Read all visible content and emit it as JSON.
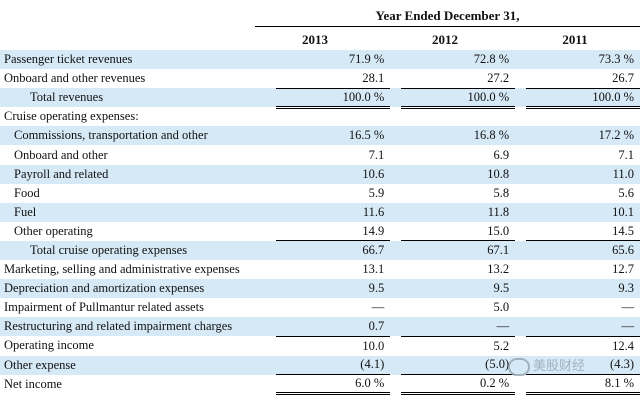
{
  "header": {
    "title": "Year Ended December 31,",
    "years": [
      "2013",
      "2012",
      "2011"
    ]
  },
  "rows": [
    {
      "label": "Passenger ticket revenues",
      "values": [
        "71.9 %",
        "72.8 %",
        "73.3 %"
      ]
    },
    {
      "label": "Onboard and other revenues",
      "values": [
        "28.1",
        "27.2",
        "26.7"
      ]
    },
    {
      "label": "Total revenues",
      "values": [
        "100.0 %",
        "100.0 %",
        "100.0 %"
      ]
    },
    {
      "label": "Cruise operating expenses:",
      "values": [
        "",
        "",
        ""
      ]
    },
    {
      "label": "Commissions, transportation and other",
      "values": [
        "16.5 %",
        "16.8 %",
        "17.2 %"
      ]
    },
    {
      "label": "Onboard and other",
      "values": [
        "7.1",
        "6.9",
        "7.1"
      ]
    },
    {
      "label": "Payroll and related",
      "values": [
        "10.6",
        "10.8",
        "11.0"
      ]
    },
    {
      "label": "Food",
      "values": [
        "5.9",
        "5.8",
        "5.6"
      ]
    },
    {
      "label": "Fuel",
      "values": [
        "11.6",
        "11.8",
        "10.1"
      ]
    },
    {
      "label": "Other operating",
      "values": [
        "14.9",
        "15.0",
        "14.5"
      ]
    },
    {
      "label": "Total cruise operating expenses",
      "values": [
        "66.7",
        "67.1",
        "65.6"
      ]
    },
    {
      "label": "Marketing, selling and administrative expenses",
      "values": [
        "13.1",
        "13.2",
        "12.7"
      ]
    },
    {
      "label": "Depreciation and amortization expenses",
      "values": [
        "9.5",
        "9.5",
        "9.3"
      ]
    },
    {
      "label": "Impairment of Pullmantur related assets",
      "values": [
        "—",
        "5.0",
        "—"
      ]
    },
    {
      "label": "Restructuring and related impairment charges",
      "values": [
        "0.7",
        "—",
        "—"
      ]
    },
    {
      "label": "Operating income",
      "values": [
        "10.0",
        "5.2",
        "12.4"
      ]
    },
    {
      "label": "Other expense",
      "values": [
        "(4.1)",
        "(5.0)",
        "(4.3)"
      ]
    },
    {
      "label": "Net income",
      "values": [
        "6.0 %",
        "0.2 %",
        "8.1 %"
      ]
    }
  ],
  "watermark": "美股财经"
}
